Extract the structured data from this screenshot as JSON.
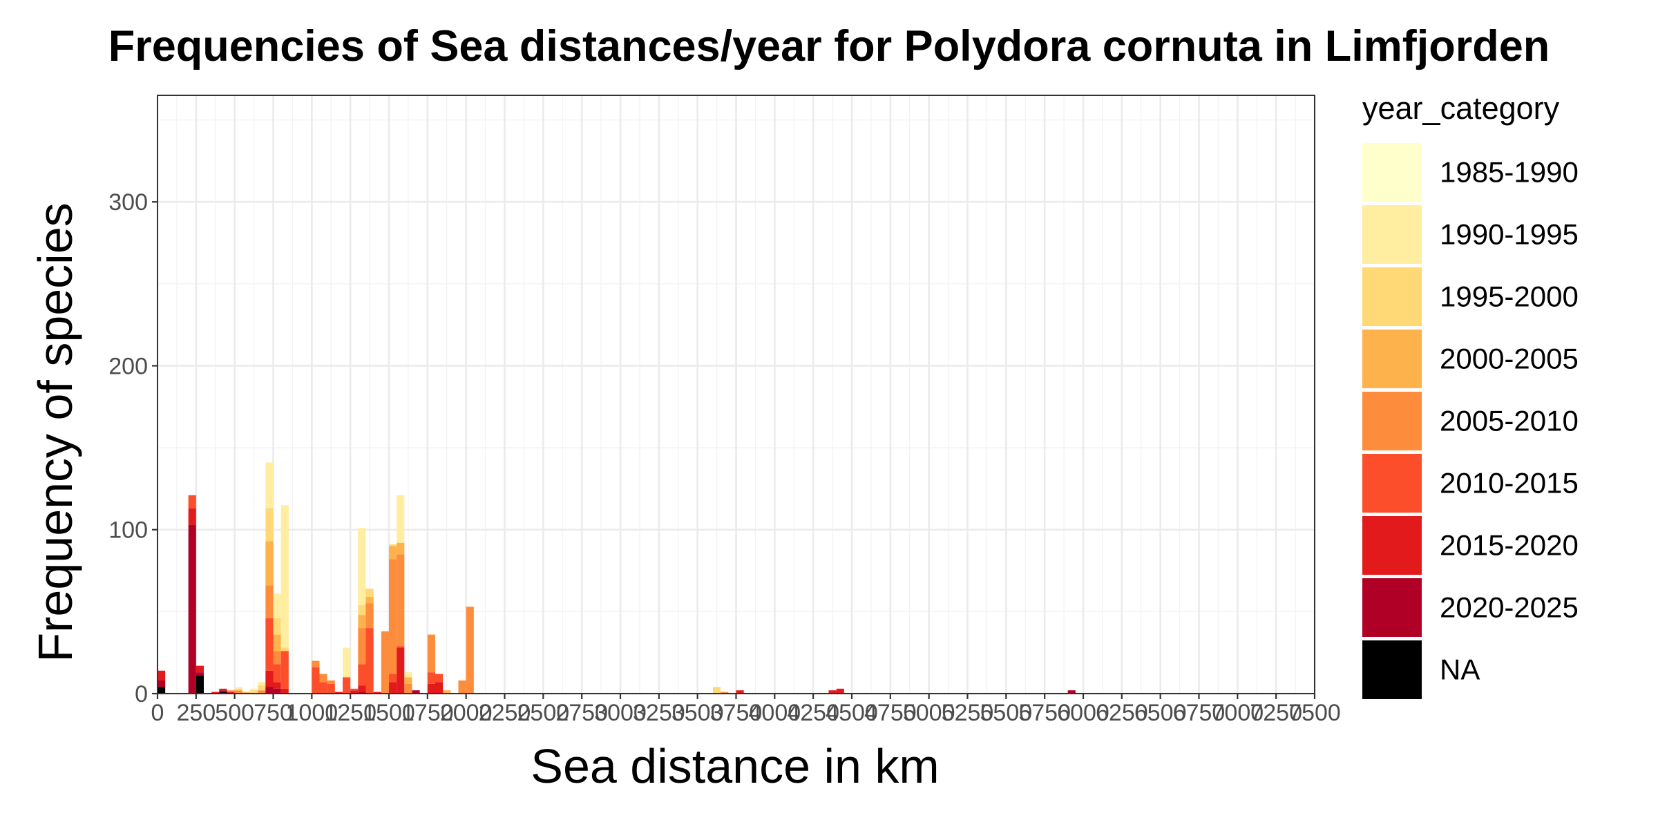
{
  "chart_data": {
    "type": "bar",
    "stacked": true,
    "title": "Frequencies of Sea distances/year for Polydora cornuta in Limfjorden",
    "xlabel": "Sea distance in km",
    "ylabel": "Frequency of species",
    "xlim": [
      0,
      7500
    ],
    "ylim": [
      0,
      365
    ],
    "bin_width": 50,
    "x_ticks": [
      0,
      250,
      500,
      750,
      1000,
      1250,
      1500,
      1750,
      2000,
      2250,
      2500,
      2750,
      3000,
      3250,
      3500,
      3750,
      4000,
      4250,
      4500,
      4750,
      5000,
      5250,
      5500,
      5750,
      6000,
      6250,
      6500,
      6750,
      7000,
      7250,
      7500
    ],
    "x_tick_labels": [
      "0",
      "250",
      "500",
      "750",
      "1000",
      "1250",
      "1500",
      "1750",
      "2000",
      "2250",
      "2500",
      "2750",
      "3000",
      "3250",
      "3500",
      "3750",
      "4000",
      "4250",
      "4500",
      "4750",
      "5000",
      "5250",
      "5500",
      "5750",
      "6000",
      "6250",
      "6500",
      "6750",
      "7000",
      "7250",
      "7500"
    ],
    "y_ticks": [
      0,
      100,
      200,
      300
    ],
    "y_tick_labels": [
      "0",
      "100",
      "200",
      "300"
    ],
    "grid": true,
    "legend": {
      "title": "year_category",
      "position": "right",
      "entries": [
        {
          "label": "1985-1990",
          "color": "#FFFFCC"
        },
        {
          "label": "1990-1995",
          "color": "#FFEDA0"
        },
        {
          "label": "1995-2000",
          "color": "#FED976"
        },
        {
          "label": "2000-2005",
          "color": "#FEB24C"
        },
        {
          "label": "2005-2010",
          "color": "#FD8D3C"
        },
        {
          "label": "2010-2015",
          "color": "#FC4E2A"
        },
        {
          "label": "2015-2020",
          "color": "#E31A1C"
        },
        {
          "label": "2020-2025",
          "color": "#B10026"
        },
        {
          "label": "NA",
          "color": "#000000"
        }
      ]
    },
    "bars": [
      {
        "x": 25,
        "segments": {
          "NA": 4,
          "2020-2025": 4,
          "2015-2020": 6
        }
      },
      {
        "x": 225,
        "segments": {
          "2020-2025": 103,
          "2015-2020": 10,
          "2010-2015": 8
        }
      },
      {
        "x": 275,
        "segments": {
          "NA": 11,
          "2020-2025": 2,
          "2015-2020": 4
        }
      },
      {
        "x": 375,
        "segments": {
          "2015-2020": 1
        }
      },
      {
        "x": 425,
        "segments": {
          "NA": 1,
          "2020-2025": 1,
          "2015-2020": 1
        }
      },
      {
        "x": 475,
        "segments": {
          "2015-2020": 1,
          "2005-2010": 1
        }
      },
      {
        "x": 525,
        "segments": {
          "2005-2010": 2,
          "1995-2000": 1,
          "1990-1995": 1
        }
      },
      {
        "x": 575,
        "segments": {
          "2000-2005": 1
        }
      },
      {
        "x": 625,
        "segments": {
          "1995-2000": 2,
          "1990-1995": 1
        }
      },
      {
        "x": 675,
        "segments": {
          "2005-2010": 2,
          "1995-2000": 3,
          "1990-1995": 2
        }
      },
      {
        "x": 725,
        "segments": {
          "2020-2025": 4,
          "2015-2020": 10,
          "2010-2015": 32,
          "2005-2010": 20,
          "2000-2005": 27,
          "1995-2000": 20,
          "1990-1995": 28
        }
      },
      {
        "x": 775,
        "segments": {
          "2020-2025": 3,
          "2015-2020": 4,
          "2010-2015": 11,
          "2005-2010": 8,
          "2000-2005": 10,
          "1995-2000": 10,
          "1990-1995": 15
        }
      },
      {
        "x": 825,
        "segments": {
          "2015-2020": 3,
          "2010-2015": 23,
          "1995-2000": 2,
          "1990-1995": 87
        }
      },
      {
        "x": 1025,
        "segments": {
          "2010-2015": 16,
          "2005-2010": 4
        }
      },
      {
        "x": 1075,
        "segments": {
          "2010-2015": 7,
          "2005-2010": 5
        }
      },
      {
        "x": 1125,
        "segments": {
          "2010-2015": 6,
          "2005-2010": 2
        }
      },
      {
        "x": 1175,
        "segments": {
          "2015-2020": 1
        }
      },
      {
        "x": 1225,
        "segments": {
          "2010-2015": 10,
          "1990-1995": 18
        }
      },
      {
        "x": 1275,
        "segments": {
          "2015-2020": 2,
          "2010-2015": 1
        }
      },
      {
        "x": 1325,
        "segments": {
          "2020-2025": 1,
          "2015-2020": 4,
          "2010-2015": 13,
          "2005-2010": 22,
          "2000-2005": 8,
          "1995-2000": 6,
          "1990-1995": 47
        }
      },
      {
        "x": 1375,
        "segments": {
          "2010-2015": 40,
          "2005-2010": 15,
          "2000-2005": 4,
          "1995-2000": 5
        }
      },
      {
        "x": 1425,
        "segments": {
          "2015-2020": 1
        }
      },
      {
        "x": 1475,
        "segments": {
          "2005-2010": 38
        }
      },
      {
        "x": 1525,
        "segments": {
          "2015-2020": 7,
          "2010-2015": 5,
          "2005-2010": 70,
          "2000-2005": 8,
          "1995-2000": 1
        }
      },
      {
        "x": 1575,
        "segments": {
          "2015-2020": 28,
          "2010-2015": 1,
          "2005-2010": 56,
          "2000-2005": 7,
          "1990-1995": 29
        }
      },
      {
        "x": 1625,
        "segments": {
          "2005-2010": 6,
          "2000-2005": 4,
          "1990-1995": 3
        }
      },
      {
        "x": 1675,
        "segments": {
          "2020-2025": 2
        }
      },
      {
        "x": 1775,
        "segments": {
          "2015-2020": 6,
          "2010-2015": 7,
          "2005-2010": 23
        }
      },
      {
        "x": 1825,
        "segments": {
          "2015-2020": 7,
          "2010-2015": 5
        }
      },
      {
        "x": 1875,
        "segments": {
          "2000-2005": 2
        }
      },
      {
        "x": 1975,
        "segments": {
          "2005-2010": 8
        }
      },
      {
        "x": 2025,
        "segments": {
          "2005-2010": 53
        }
      },
      {
        "x": 3625,
        "segments": {
          "1995-2000": 4
        }
      },
      {
        "x": 3675,
        "segments": {
          "2005-2010": 1
        }
      },
      {
        "x": 3775,
        "segments": {
          "2015-2020": 2
        }
      },
      {
        "x": 4375,
        "segments": {
          "2015-2020": 2
        }
      },
      {
        "x": 4425,
        "segments": {
          "2015-2020": 3
        }
      },
      {
        "x": 5925,
        "segments": {
          "2020-2025": 2
        }
      }
    ]
  }
}
